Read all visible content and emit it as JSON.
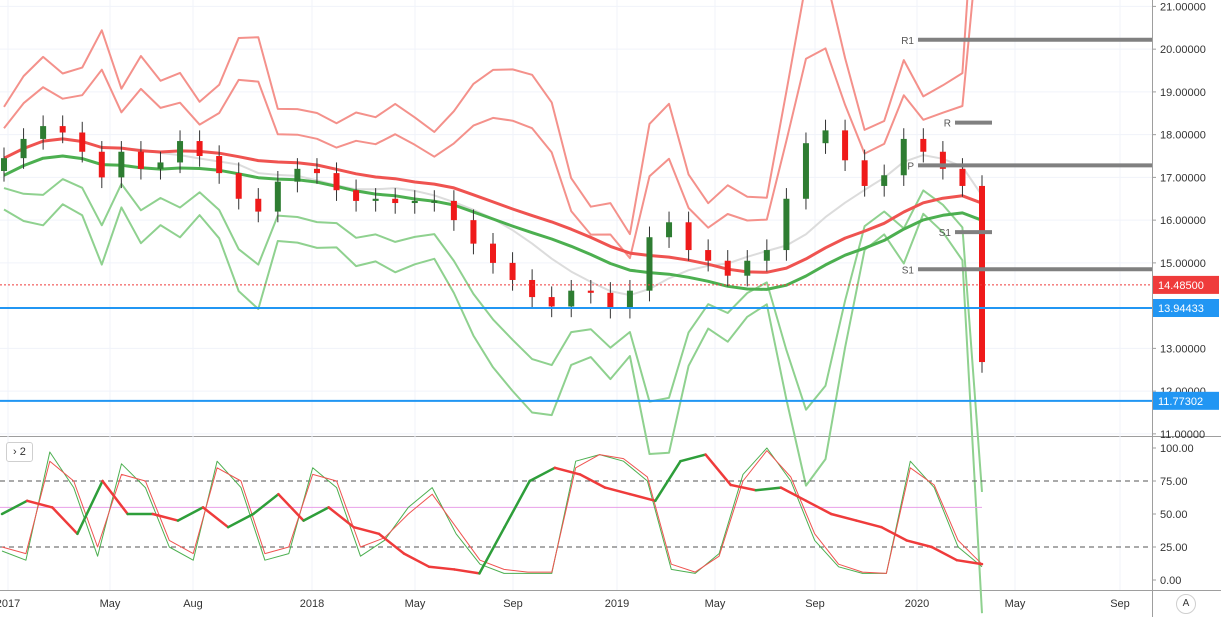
{
  "chart_data": {
    "type": "candlestick",
    "price_axis": {
      "ticks": [
        "21.00000",
        "20.00000",
        "19.00000",
        "18.00000",
        "17.00000",
        "16.00000",
        "15.00000",
        "13.00000",
        "12.00000",
        "11.00000"
      ],
      "range": [
        10.95,
        21.15
      ]
    },
    "price_badges": [
      {
        "label": "14.48500",
        "value": 14.485,
        "color": "#ef3b3b"
      },
      {
        "label": "13.94433",
        "value": 13.94433,
        "color": "#2196f3"
      },
      {
        "label": "11.77302",
        "value": 11.77302,
        "color": "#2196f3"
      }
    ],
    "time_axis": [
      "2017",
      "May",
      "Aug",
      "2018",
      "May",
      "Sep",
      "2019",
      "May",
      "Sep",
      "2020",
      "May",
      "Sep"
    ],
    "pivots": [
      {
        "label": "R1",
        "value": 20.22
      },
      {
        "label": "R",
        "value": 18.28
      },
      {
        "label": "P",
        "value": 17.28
      },
      {
        "label": "S1",
        "value": 15.72
      },
      {
        "label": "S1",
        "value": 14.85
      }
    ],
    "close_series": [
      17.45,
      17.9,
      18.2,
      18.05,
      17.6,
      17.0,
      17.6,
      17.2,
      17.35,
      17.85,
      17.5,
      17.1,
      16.5,
      16.2,
      16.9,
      17.2,
      17.1,
      16.7,
      16.45,
      16.5,
      16.4,
      16.45,
      16.45,
      16.0,
      15.45,
      15.0,
      14.6,
      14.2,
      13.98,
      14.35,
      14.3,
      13.95,
      14.35,
      15.6,
      15.95,
      15.3,
      15.05,
      14.7,
      15.05,
      15.3,
      16.5,
      17.8,
      18.1,
      17.4,
      16.8,
      17.05,
      17.9,
      17.6,
      17.2,
      16.8,
      12.68
    ],
    "stoch_pane": {
      "indicator": "2",
      "ticks": [
        "100.00",
        "75.00",
        "50.00",
        "25.00",
        "0.00"
      ],
      "levels": [
        75,
        55,
        25
      ],
      "k_series": [
        22,
        15,
        97,
        70,
        18,
        88,
        70,
        25,
        15,
        90,
        70,
        15,
        20,
        85,
        70,
        18,
        30,
        55,
        70,
        35,
        12,
        5,
        5,
        5,
        90,
        95,
        90,
        75,
        8,
        5,
        20,
        80,
        100,
        75,
        30,
        10,
        5,
        5,
        90,
        70,
        25,
        10
      ],
      "d_series": [
        25,
        20,
        90,
        75,
        25,
        80,
        75,
        30,
        20,
        85,
        75,
        20,
        25,
        80,
        75,
        25,
        32,
        50,
        65,
        40,
        15,
        8,
        6,
        6,
        85,
        95,
        92,
        78,
        12,
        6,
        18,
        75,
        98,
        78,
        35,
        12,
        6,
        5,
        85,
        72,
        30,
        12
      ],
      "slow_series": [
        50,
        60,
        55,
        35,
        75,
        50,
        50,
        45,
        55,
        40,
        50,
        65,
        45,
        55,
        40,
        35,
        20,
        10,
        8,
        5,
        40,
        75,
        85,
        80,
        70,
        65,
        60,
        90,
        95,
        72,
        68,
        70,
        60,
        50,
        45,
        40,
        30,
        25,
        15,
        12
      ]
    }
  }
}
